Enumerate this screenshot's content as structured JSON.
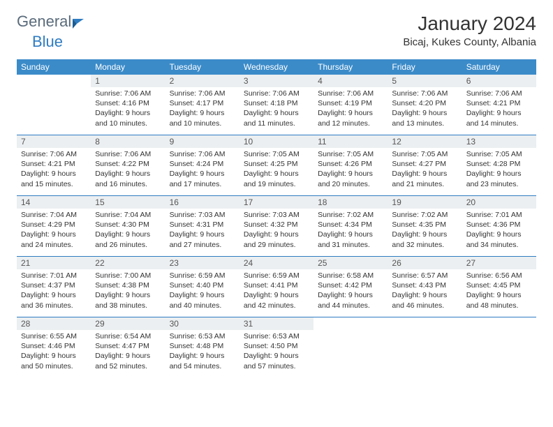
{
  "logo": {
    "text_a": "General",
    "text_b": "Blue"
  },
  "title": "January 2024",
  "location": "Bicaj, Kukes County, Albania",
  "header_bg": "#3b8bc9",
  "daynum_bg": "#eceff1",
  "border_color": "#2e7cc2",
  "weekdays": [
    "Sunday",
    "Monday",
    "Tuesday",
    "Wednesday",
    "Thursday",
    "Friday",
    "Saturday"
  ],
  "weeks": [
    [
      null,
      {
        "num": "1",
        "sunrise": "Sunrise: 7:06 AM",
        "sunset": "Sunset: 4:16 PM",
        "day1": "Daylight: 9 hours",
        "day2": "and 10 minutes."
      },
      {
        "num": "2",
        "sunrise": "Sunrise: 7:06 AM",
        "sunset": "Sunset: 4:17 PM",
        "day1": "Daylight: 9 hours",
        "day2": "and 10 minutes."
      },
      {
        "num": "3",
        "sunrise": "Sunrise: 7:06 AM",
        "sunset": "Sunset: 4:18 PM",
        "day1": "Daylight: 9 hours",
        "day2": "and 11 minutes."
      },
      {
        "num": "4",
        "sunrise": "Sunrise: 7:06 AM",
        "sunset": "Sunset: 4:19 PM",
        "day1": "Daylight: 9 hours",
        "day2": "and 12 minutes."
      },
      {
        "num": "5",
        "sunrise": "Sunrise: 7:06 AM",
        "sunset": "Sunset: 4:20 PM",
        "day1": "Daylight: 9 hours",
        "day2": "and 13 minutes."
      },
      {
        "num": "6",
        "sunrise": "Sunrise: 7:06 AM",
        "sunset": "Sunset: 4:21 PM",
        "day1": "Daylight: 9 hours",
        "day2": "and 14 minutes."
      }
    ],
    [
      {
        "num": "7",
        "sunrise": "Sunrise: 7:06 AM",
        "sunset": "Sunset: 4:21 PM",
        "day1": "Daylight: 9 hours",
        "day2": "and 15 minutes."
      },
      {
        "num": "8",
        "sunrise": "Sunrise: 7:06 AM",
        "sunset": "Sunset: 4:22 PM",
        "day1": "Daylight: 9 hours",
        "day2": "and 16 minutes."
      },
      {
        "num": "9",
        "sunrise": "Sunrise: 7:06 AM",
        "sunset": "Sunset: 4:24 PM",
        "day1": "Daylight: 9 hours",
        "day2": "and 17 minutes."
      },
      {
        "num": "10",
        "sunrise": "Sunrise: 7:05 AM",
        "sunset": "Sunset: 4:25 PM",
        "day1": "Daylight: 9 hours",
        "day2": "and 19 minutes."
      },
      {
        "num": "11",
        "sunrise": "Sunrise: 7:05 AM",
        "sunset": "Sunset: 4:26 PM",
        "day1": "Daylight: 9 hours",
        "day2": "and 20 minutes."
      },
      {
        "num": "12",
        "sunrise": "Sunrise: 7:05 AM",
        "sunset": "Sunset: 4:27 PM",
        "day1": "Daylight: 9 hours",
        "day2": "and 21 minutes."
      },
      {
        "num": "13",
        "sunrise": "Sunrise: 7:05 AM",
        "sunset": "Sunset: 4:28 PM",
        "day1": "Daylight: 9 hours",
        "day2": "and 23 minutes."
      }
    ],
    [
      {
        "num": "14",
        "sunrise": "Sunrise: 7:04 AM",
        "sunset": "Sunset: 4:29 PM",
        "day1": "Daylight: 9 hours",
        "day2": "and 24 minutes."
      },
      {
        "num": "15",
        "sunrise": "Sunrise: 7:04 AM",
        "sunset": "Sunset: 4:30 PM",
        "day1": "Daylight: 9 hours",
        "day2": "and 26 minutes."
      },
      {
        "num": "16",
        "sunrise": "Sunrise: 7:03 AM",
        "sunset": "Sunset: 4:31 PM",
        "day1": "Daylight: 9 hours",
        "day2": "and 27 minutes."
      },
      {
        "num": "17",
        "sunrise": "Sunrise: 7:03 AM",
        "sunset": "Sunset: 4:32 PM",
        "day1": "Daylight: 9 hours",
        "day2": "and 29 minutes."
      },
      {
        "num": "18",
        "sunrise": "Sunrise: 7:02 AM",
        "sunset": "Sunset: 4:34 PM",
        "day1": "Daylight: 9 hours",
        "day2": "and 31 minutes."
      },
      {
        "num": "19",
        "sunrise": "Sunrise: 7:02 AM",
        "sunset": "Sunset: 4:35 PM",
        "day1": "Daylight: 9 hours",
        "day2": "and 32 minutes."
      },
      {
        "num": "20",
        "sunrise": "Sunrise: 7:01 AM",
        "sunset": "Sunset: 4:36 PM",
        "day1": "Daylight: 9 hours",
        "day2": "and 34 minutes."
      }
    ],
    [
      {
        "num": "21",
        "sunrise": "Sunrise: 7:01 AM",
        "sunset": "Sunset: 4:37 PM",
        "day1": "Daylight: 9 hours",
        "day2": "and 36 minutes."
      },
      {
        "num": "22",
        "sunrise": "Sunrise: 7:00 AM",
        "sunset": "Sunset: 4:38 PM",
        "day1": "Daylight: 9 hours",
        "day2": "and 38 minutes."
      },
      {
        "num": "23",
        "sunrise": "Sunrise: 6:59 AM",
        "sunset": "Sunset: 4:40 PM",
        "day1": "Daylight: 9 hours",
        "day2": "and 40 minutes."
      },
      {
        "num": "24",
        "sunrise": "Sunrise: 6:59 AM",
        "sunset": "Sunset: 4:41 PM",
        "day1": "Daylight: 9 hours",
        "day2": "and 42 minutes."
      },
      {
        "num": "25",
        "sunrise": "Sunrise: 6:58 AM",
        "sunset": "Sunset: 4:42 PM",
        "day1": "Daylight: 9 hours",
        "day2": "and 44 minutes."
      },
      {
        "num": "26",
        "sunrise": "Sunrise: 6:57 AM",
        "sunset": "Sunset: 4:43 PM",
        "day1": "Daylight: 9 hours",
        "day2": "and 46 minutes."
      },
      {
        "num": "27",
        "sunrise": "Sunrise: 6:56 AM",
        "sunset": "Sunset: 4:45 PM",
        "day1": "Daylight: 9 hours",
        "day2": "and 48 minutes."
      }
    ],
    [
      {
        "num": "28",
        "sunrise": "Sunrise: 6:55 AM",
        "sunset": "Sunset: 4:46 PM",
        "day1": "Daylight: 9 hours",
        "day2": "and 50 minutes."
      },
      {
        "num": "29",
        "sunrise": "Sunrise: 6:54 AM",
        "sunset": "Sunset: 4:47 PM",
        "day1": "Daylight: 9 hours",
        "day2": "and 52 minutes."
      },
      {
        "num": "30",
        "sunrise": "Sunrise: 6:53 AM",
        "sunset": "Sunset: 4:48 PM",
        "day1": "Daylight: 9 hours",
        "day2": "and 54 minutes."
      },
      {
        "num": "31",
        "sunrise": "Sunrise: 6:53 AM",
        "sunset": "Sunset: 4:50 PM",
        "day1": "Daylight: 9 hours",
        "day2": "and 57 minutes."
      },
      null,
      null,
      null
    ]
  ]
}
